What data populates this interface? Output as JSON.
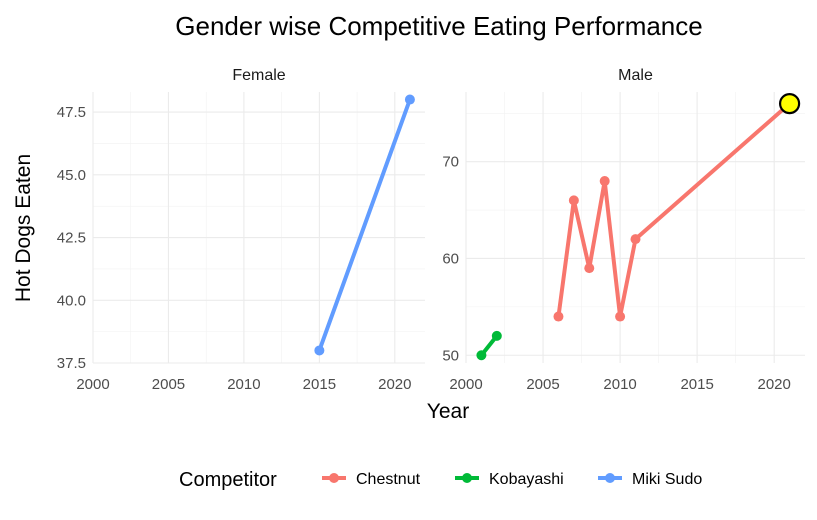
{
  "chart_data": {
    "type": "line",
    "title": "Gender wise Competitive Eating Performance",
    "xlabel": "Year",
    "ylabel": "Hot Dogs Eaten",
    "grid": true,
    "legend": {
      "title": "Competitor",
      "placement": "bottom",
      "entries": [
        "Chestnut",
        "Kobayashi",
        "Miki Sudo"
      ]
    },
    "colors": {
      "Chestnut": "#F8766D",
      "Kobayashi": "#00BA38",
      "Miki Sudo": "#619CFF",
      "highlight_fill": "#FFFF00",
      "highlight_stroke": "#000000"
    },
    "panels": [
      {
        "facet": "Female",
        "xlim": [
          2000,
          2022
        ],
        "ylim": [
          37.5,
          48.3
        ],
        "x_ticks": [
          2000,
          2005,
          2010,
          2015,
          2020
        ],
        "y_ticks": [
          37.5,
          40.0,
          42.5,
          45.0,
          47.5
        ],
        "y_tick_labels": [
          "37.5",
          "40.0",
          "42.5",
          "45.0",
          "47.5"
        ],
        "series": [
          {
            "name": "Miki Sudo",
            "x": [
              2015,
              2021
            ],
            "y": [
              38,
              48
            ]
          }
        ]
      },
      {
        "facet": "Male",
        "xlim": [
          2000,
          2022
        ],
        "ylim": [
          49.2,
          77.2
        ],
        "x_ticks": [
          2000,
          2005,
          2010,
          2015,
          2020
        ],
        "y_ticks": [
          50,
          60,
          70
        ],
        "y_tick_labels": [
          "50",
          "60",
          "70"
        ],
        "series": [
          {
            "name": "Kobayashi",
            "x": [
              2001,
              2002
            ],
            "y": [
              50,
              52
            ]
          },
          {
            "name": "Chestnut",
            "x": [
              2006,
              2007,
              2008,
              2009,
              2010,
              2011,
              2021
            ],
            "y": [
              54,
              66,
              59,
              68,
              54,
              62,
              76
            ]
          }
        ],
        "highlight": {
          "x": 2021,
          "y": 76
        }
      }
    ]
  }
}
